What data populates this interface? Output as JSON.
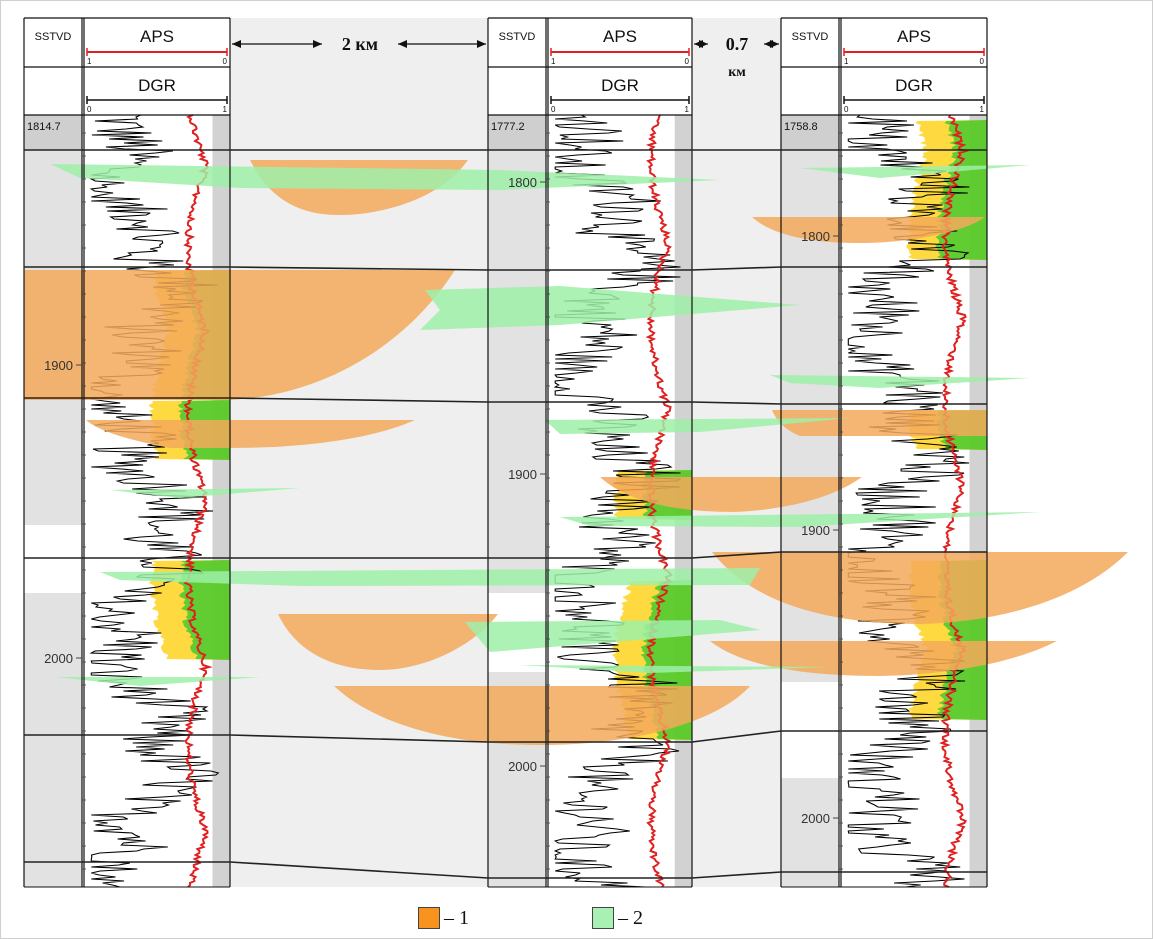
{
  "wells": [
    {
      "depth_col_label": "SSTVD",
      "top_curve": "APS",
      "top_scale": [
        "1",
        "0"
      ],
      "bottom_curve": "DGR",
      "bottom_scale": [
        "0",
        "1"
      ],
      "top_depth": "1814.7",
      "depth_ticks": [
        "1900",
        "2000"
      ]
    },
    {
      "depth_col_label": "SSTVD",
      "top_curve": "APS",
      "top_scale": [
        "1",
        "0"
      ],
      "bottom_curve": "DGR",
      "bottom_scale": [
        "0",
        "1"
      ],
      "top_depth": "1777.2",
      "depth_ticks": [
        "1800",
        "1900",
        "2000"
      ]
    },
    {
      "depth_col_label": "SSTVD",
      "top_curve": "APS",
      "top_scale": [
        "1",
        "0"
      ],
      "bottom_curve": "DGR",
      "bottom_scale": [
        "0",
        "1"
      ],
      "top_depth": "1758.8",
      "depth_ticks": [
        "1800",
        "1900",
        "2000"
      ]
    }
  ],
  "distances": [
    {
      "label": "2 км"
    },
    {
      "label_top": "0.7",
      "label_bottom": "км"
    }
  ],
  "legend": [
    {
      "swatch_color": "#f7931e",
      "label": "– 1"
    },
    {
      "swatch_color": "#a8f0b4",
      "label": "– 2"
    }
  ],
  "colors": {
    "aps_curve": "#e02020",
    "dgr_curve": "#000000",
    "sand_body": "#f5a95a",
    "thin_layer": "#9ef0a8",
    "yellow_fill": "#ffd21f",
    "green_fill": "#2dc82d",
    "panel_grey": "#d2d2d2",
    "between_grey": "#efefef"
  }
}
